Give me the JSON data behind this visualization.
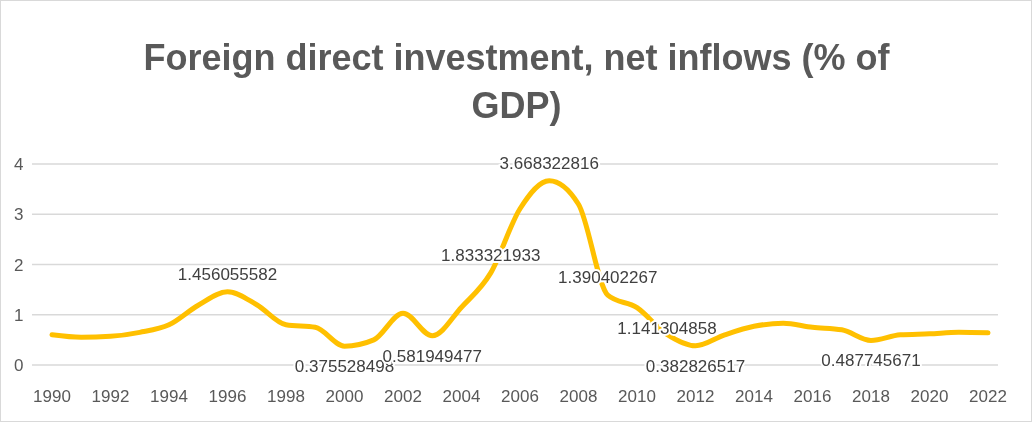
{
  "chart_data": {
    "type": "line",
    "title": "Foreign direct investment, net inflows (% of GDP)",
    "categories": [
      "1990",
      null,
      "1992",
      null,
      "1994",
      null,
      "1996",
      null,
      "1998",
      null,
      "2000",
      null,
      "2002",
      null,
      "2004",
      null,
      "2006",
      null,
      "2008",
      null,
      "2010",
      null,
      "2012",
      null,
      "2014",
      null,
      "2016",
      null,
      "2018",
      null,
      "2020",
      null,
      "2022"
    ],
    "series": [
      {
        "color": "#ffc000",
        "values": [
          0.6,
          0.55,
          0.57,
          0.65,
          0.8,
          1.19,
          1.456055582,
          1.2,
          0.8,
          0.75,
          0.375528498,
          0.5,
          1.03,
          0.581949477,
          1.15,
          1.833321933,
          3.11,
          3.668322816,
          3.2,
          1.390402267,
          1.141304858,
          0.62,
          0.382826517,
          0.6,
          0.77,
          0.83,
          0.75,
          0.7,
          0.487745671,
          0.6,
          0.62,
          0.65,
          0.64
        ],
        "value_labels": [
          null,
          null,
          null,
          null,
          null,
          null,
          "1.456055582",
          null,
          null,
          null,
          "0.375528498",
          null,
          null,
          "0.581949477",
          null,
          "1.833321933",
          null,
          "3.668322816",
          null,
          "1.390402267",
          "1.141304858",
          null,
          "0.382826517",
          null,
          null,
          null,
          null,
          null,
          "0.487745671",
          null,
          null,
          null,
          null
        ]
      }
    ],
    "ylim": [
      0,
      4
    ],
    "yticks": [
      0,
      1,
      2,
      3,
      4
    ],
    "grid": "y",
    "line_style": "solid",
    "marker": "none"
  }
}
